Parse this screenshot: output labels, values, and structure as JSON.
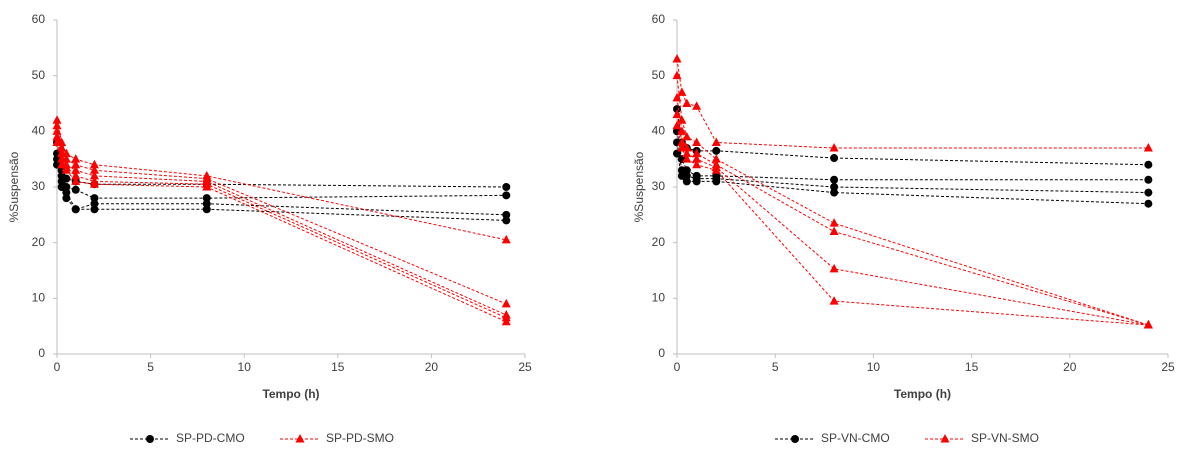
{
  "charts": [
    {
      "type": "line",
      "x_label": "Tempo (h)",
      "y_label": "%Suspensão",
      "xlim": [
        0,
        25
      ],
      "xticks": [
        0,
        5,
        10,
        15,
        20,
        25
      ],
      "ylim": [
        0,
        60
      ],
      "yticks": [
        0,
        10,
        20,
        30,
        40,
        50,
        60
      ],
      "x": [
        0,
        0.25,
        0.5,
        1,
        2,
        8,
        24
      ],
      "series": [
        {
          "name": "SP-PD-CMO",
          "color": "#000000",
          "marker": "circle",
          "lines": [
            [
              38,
              33,
              31.5,
              31,
              30.5,
              30.5,
              30
            ],
            [
              36,
              32,
              30,
              29.5,
              28,
              28,
              28.5
            ],
            [
              35,
              31,
              29,
              26,
              27,
              27,
              25
            ],
            [
              34,
              30,
              28,
              26,
              26,
              26,
              24
            ]
          ]
        },
        {
          "name": "SP-PD-SMO",
          "color": "#ff0000",
          "marker": "triangle",
          "lines": [
            [
              42,
              38,
              36,
              35,
              34,
              32,
              20.5
            ],
            [
              41,
              37,
              35,
              34,
              33,
              31.5,
              9
            ],
            [
              40,
              36,
              34,
              33,
              32,
              31,
              7
            ],
            [
              39,
              35,
              33.5,
              32,
              31,
              30.5,
              6.5
            ],
            [
              38,
              34,
              33,
              31,
              30.5,
              30,
              5.8
            ]
          ]
        }
      ]
    },
    {
      "type": "line",
      "x_label": "Tempo (h)",
      "y_label": "%Suspensão",
      "xlim": [
        0,
        25
      ],
      "xticks": [
        0,
        5,
        10,
        15,
        20,
        25
      ],
      "ylim": [
        0,
        60
      ],
      "yticks": [
        0,
        10,
        20,
        30,
        40,
        50,
        60
      ],
      "x": [
        0,
        0.25,
        0.5,
        1,
        2,
        8,
        24
      ],
      "series": [
        {
          "name": "SP-VN-CMO",
          "color": "#000000",
          "marker": "circle",
          "lines": [
            [
              44,
              38,
              37,
              36.5,
              36.5,
              35.2,
              34
            ],
            [
              40,
              35,
              33,
              32,
              32,
              31.3,
              31.3
            ],
            [
              38,
              33,
              32,
              31.5,
              31.5,
              30,
              29
            ],
            [
              36,
              32,
              31,
              31,
              31,
              29,
              27
            ]
          ]
        },
        {
          "name": "SP-VN-SMO",
          "color": "#ff0000",
          "marker": "triangle",
          "lines": [
            [
              53,
              47,
              45,
              44.5,
              38,
              37,
              37
            ],
            [
              50,
              42,
              39,
              38,
              35,
              23.5,
              5.2
            ],
            [
              46,
              40,
              37,
              36,
              34,
              22,
              5.2
            ],
            [
              43,
              38,
              36,
              35,
              33.5,
              15.3,
              5.2
            ],
            [
              41,
              37,
              35,
              34,
              33,
              9.5,
              5.2
            ]
          ]
        }
      ]
    }
  ]
}
